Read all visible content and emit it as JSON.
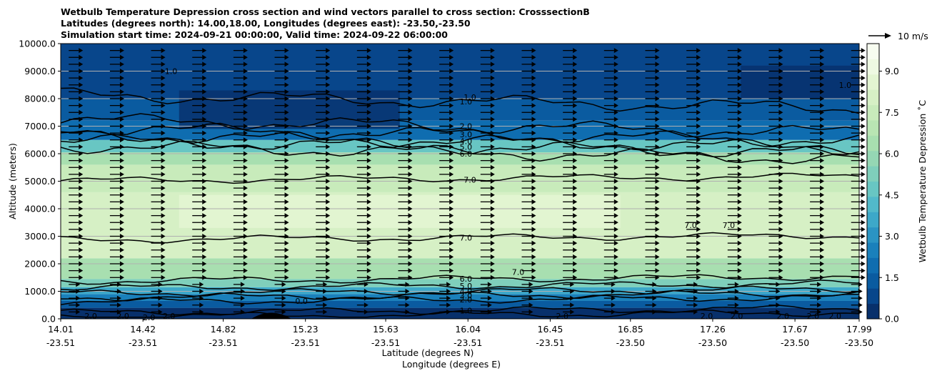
{
  "title_lines": [
    "Wetbulb Temperature Depression cross section and wind vectors parallel to cross section: CrosssectionB",
    "Latitudes (degrees north): 14.00,18.00, Longitudes (degrees east): -23.50,-23.50",
    "Simulation start time: 2024-09-21 00:00:00, Valid time: 2024-09-22 06:00:00"
  ],
  "chart_data": {
    "type": "heatmap",
    "ylabel": "Altitude (meters)",
    "xlabel_lat": "Latitude (degrees N)",
    "xlabel_lon": "Longitude (degrees E)",
    "ylim": [
      0,
      10000
    ],
    "yticks": [
      "0.0",
      "1000.0",
      "2000.0",
      "3000.0",
      "4000.0",
      "5000.0",
      "6000.0",
      "7000.0",
      "8000.0",
      "9000.0",
      "10000.0"
    ],
    "xlim": [
      14.01,
      17.99
    ],
    "xticks": [
      {
        "lat": "14.01",
        "lon": "-23.51"
      },
      {
        "lat": "14.42",
        "lon": "-23.51"
      },
      {
        "lat": "14.82",
        "lon": "-23.51"
      },
      {
        "lat": "15.23",
        "lon": "-23.51"
      },
      {
        "lat": "15.63",
        "lon": "-23.51"
      },
      {
        "lat": "16.04",
        "lon": "-23.51"
      },
      {
        "lat": "16.45",
        "lon": "-23.51"
      },
      {
        "lat": "16.85",
        "lon": "-23.50"
      },
      {
        "lat": "17.26",
        "lon": "-23.50"
      },
      {
        "lat": "17.67",
        "lon": "-23.50"
      },
      {
        "lat": "17.99",
        "lon": "-23.50"
      }
    ],
    "grid": "horizontal",
    "colorbar": {
      "label": "Wetbulb Temperature Depression ˚C",
      "ticks": [
        "0.0",
        "1.5",
        "3.0",
        "4.5",
        "6.0",
        "7.5",
        "9.0"
      ],
      "range": [
        0,
        10
      ],
      "colors": [
        "#08306b",
        "#08468b",
        "#0a5ba0",
        "#0f6db0",
        "#1a80bb",
        "#2b94c3",
        "#3da8c9",
        "#52b9ca",
        "#68c6c3",
        "#7fcfbb",
        "#95d7b4",
        "#a8dfb0",
        "#b9e5b3",
        "#c8ebbb",
        "#d6f0c5",
        "#e3f5d2",
        "#eef9e2",
        "#f7fcf0"
      ]
    },
    "wind_reference": "10 m/s",
    "contour_levels": [
      {
        "level": 7.0,
        "label": "7.0"
      },
      {
        "level": 6.0,
        "label": "6.0"
      },
      {
        "level": 5.0,
        "label": "5.0"
      },
      {
        "level": 4.0,
        "label": "4.0"
      },
      {
        "level": 3.0,
        "label": "3.0"
      },
      {
        "level": 2.0,
        "label": "2.0"
      },
      {
        "level": 1.0,
        "label": "1.0"
      },
      {
        "level": 0.0,
        "label": "0.0"
      }
    ],
    "profile_bands_m": [
      {
        "top": 400,
        "value": 0.5
      },
      {
        "top": 650,
        "value": 1.5
      },
      {
        "top": 900,
        "value": 2.5
      },
      {
        "top": 1150,
        "value": 3.5
      },
      {
        "top": 1450,
        "value": 5.0
      },
      {
        "top": 2200,
        "value": 6.5
      },
      {
        "top": 4600,
        "value": 7.8
      },
      {
        "top": 5600,
        "value": 7.3
      },
      {
        "top": 6050,
        "value": 6.3
      },
      {
        "top": 6500,
        "value": 4.5
      },
      {
        "top": 7200,
        "value": 2.0
      },
      {
        "top": 8000,
        "value": 1.2
      },
      {
        "top": 10000,
        "value": 0.8
      }
    ],
    "contour_label_positions": [
      {
        "text": "1.0",
        "lat": 16.03,
        "alt": 7900
      },
      {
        "text": "2.0",
        "lat": 16.03,
        "alt": 7000
      },
      {
        "text": "3.0",
        "lat": 16.03,
        "alt": 6700
      },
      {
        "text": "4.0",
        "lat": 16.03,
        "alt": 6450
      },
      {
        "text": "5.0",
        "lat": 16.03,
        "alt": 6250
      },
      {
        "text": "6.0",
        "lat": 16.03,
        "alt": 6000
      },
      {
        "text": "7.0",
        "lat": 16.05,
        "alt": 5050
      },
      {
        "text": "7.0",
        "lat": 16.03,
        "alt": 2950
      },
      {
        "text": "6.0",
        "lat": 16.03,
        "alt": 1450
      },
      {
        "text": "5.0",
        "lat": 16.03,
        "alt": 1200
      },
      {
        "text": "4.0",
        "lat": 16.03,
        "alt": 1000
      },
      {
        "text": "3.0",
        "lat": 16.03,
        "alt": 850
      },
      {
        "text": "2.0",
        "lat": 16.03,
        "alt": 700
      },
      {
        "text": "1.0",
        "lat": 16.03,
        "alt": 300
      },
      {
        "text": "0.0",
        "lat": 15.21,
        "alt": 650
      },
      {
        "text": "1.0",
        "lat": 14.56,
        "alt": 9000
      },
      {
        "text": "1.0",
        "lat": 16.05,
        "alt": 8050
      },
      {
        "text": "1.0",
        "lat": 17.92,
        "alt": 8500
      },
      {
        "text": "7.0",
        "lat": 17.15,
        "alt": 3400
      },
      {
        "text": "7.0",
        "lat": 17.34,
        "alt": 3400
      },
      {
        "text": "7.0",
        "lat": 16.29,
        "alt": 1700
      },
      {
        "text": "2.0",
        "lat": 14.16,
        "alt": 100
      },
      {
        "text": "2.0",
        "lat": 14.32,
        "alt": 100
      },
      {
        "text": "2.0",
        "lat": 14.45,
        "alt": 50
      },
      {
        "text": "2.0",
        "lat": 14.55,
        "alt": 100
      },
      {
        "text": "2.0",
        "lat": 16.51,
        "alt": 100
      },
      {
        "text": "2.0",
        "lat": 17.23,
        "alt": 100
      },
      {
        "text": "2.0",
        "lat": 17.38,
        "alt": 100
      },
      {
        "text": "2.0",
        "lat": 17.61,
        "alt": 100
      },
      {
        "text": "2.0",
        "lat": 17.76,
        "alt": 100
      },
      {
        "text": "2.0",
        "lat": 17.87,
        "alt": 100
      }
    ]
  }
}
